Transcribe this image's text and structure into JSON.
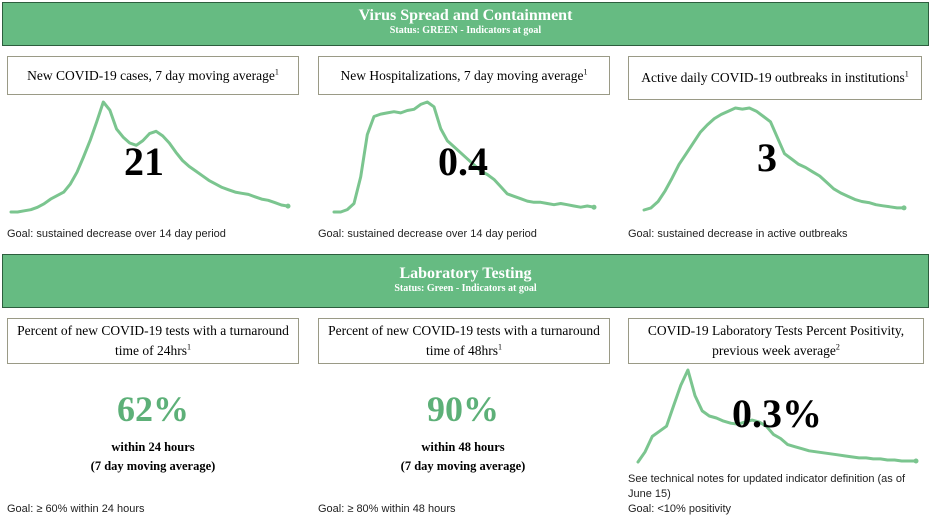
{
  "colors": {
    "banner_green": "#66bb82",
    "line_green": "#7bc58f",
    "pct_green": "#5db078",
    "border": "#9a9a86"
  },
  "section1": {
    "title": "Virus Spread and Containment",
    "status": "Status: GREEN - Indicators at goal"
  },
  "section2": {
    "title": "Laboratory Testing",
    "status": "Status: Green - Indicators at goal"
  },
  "cards": {
    "cases": {
      "title": "New COVID-19 cases, 7 day moving average",
      "sup": "1",
      "value": "21",
      "goal": "Goal: sustained decrease over 14  day period"
    },
    "hosp": {
      "title": "New Hospitalizations, 7 day moving average",
      "sup": "1",
      "value": "0.4",
      "goal": "Goal: sustained decrease over 14  day period"
    },
    "outbreaks": {
      "title": "Active daily COVID-19 outbreaks in institutions",
      "sup": "1",
      "value": "3",
      "goal": "Goal: sustained decrease in active outbreaks"
    },
    "tat24": {
      "title_line1": "Percent of new COVID-19 tests with a turnaround",
      "title_line2": "time of 24hrs",
      "sup": "1",
      "value": "62%",
      "sub1": "within 24 hours",
      "sub2": "(7 day moving average)",
      "goal": "Goal: ≥ 60% within 24  hours"
    },
    "tat48": {
      "title_line1": "Percent of new COVID-19 tests with a turnaround",
      "title_line2": "time of 48hrs",
      "sup": "1",
      "value": "90%",
      "sub1": "within 48 hours",
      "sub2": "(7 day moving average)",
      "goal": "Goal:  ≥ 80% within 48 hours"
    },
    "positivity": {
      "title_line1": "COVID-19 Laboratory Tests Percent Positivity,",
      "title_line2": "previous week average",
      "sup": "2",
      "value": "0.3%",
      "note": "See technical notes for updated indicator definition (as of June 15)",
      "goal": "Goal: <10% positivity"
    }
  },
  "chart_data": [
    {
      "type": "line",
      "name": "cases",
      "values": [
        1,
        1,
        2,
        3,
        5,
        8,
        12,
        15,
        18,
        25,
        35,
        48,
        62,
        78,
        95,
        88,
        72,
        65,
        60,
        58,
        62,
        68,
        70,
        66,
        60,
        52,
        45,
        40,
        36,
        32,
        28,
        25,
        22,
        20,
        18,
        17,
        16,
        14,
        12,
        11,
        9,
        7,
        6
      ]
    },
    {
      "type": "line",
      "name": "hospitalizations",
      "values": [
        1,
        1,
        3,
        8,
        30,
        65,
        80,
        82,
        83,
        84,
        83,
        85,
        86,
        90,
        92,
        88,
        70,
        60,
        55,
        50,
        45,
        40,
        35,
        32,
        28,
        22,
        16,
        14,
        12,
        10,
        9,
        9,
        8,
        7,
        8,
        7,
        6,
        5,
        6,
        5
      ]
    },
    {
      "type": "line",
      "name": "outbreaks",
      "values": [
        2,
        4,
        10,
        20,
        32,
        45,
        55,
        65,
        75,
        82,
        88,
        92,
        95,
        98,
        97,
        98,
        95,
        90,
        85,
        70,
        55,
        50,
        45,
        42,
        38,
        34,
        28,
        22,
        18,
        15,
        12,
        10,
        9,
        7,
        6,
        5,
        4,
        4
      ]
    },
    {
      "type": "line",
      "name": "positivity",
      "values": [
        5,
        15,
        30,
        35,
        40,
        60,
        80,
        95,
        70,
        55,
        50,
        48,
        45,
        43,
        42,
        44,
        46,
        44,
        40,
        32,
        28,
        22,
        20,
        18,
        16,
        15,
        14,
        13,
        12,
        11,
        10,
        9,
        9,
        8,
        8,
        7,
        7,
        6,
        6,
        6
      ]
    }
  ]
}
